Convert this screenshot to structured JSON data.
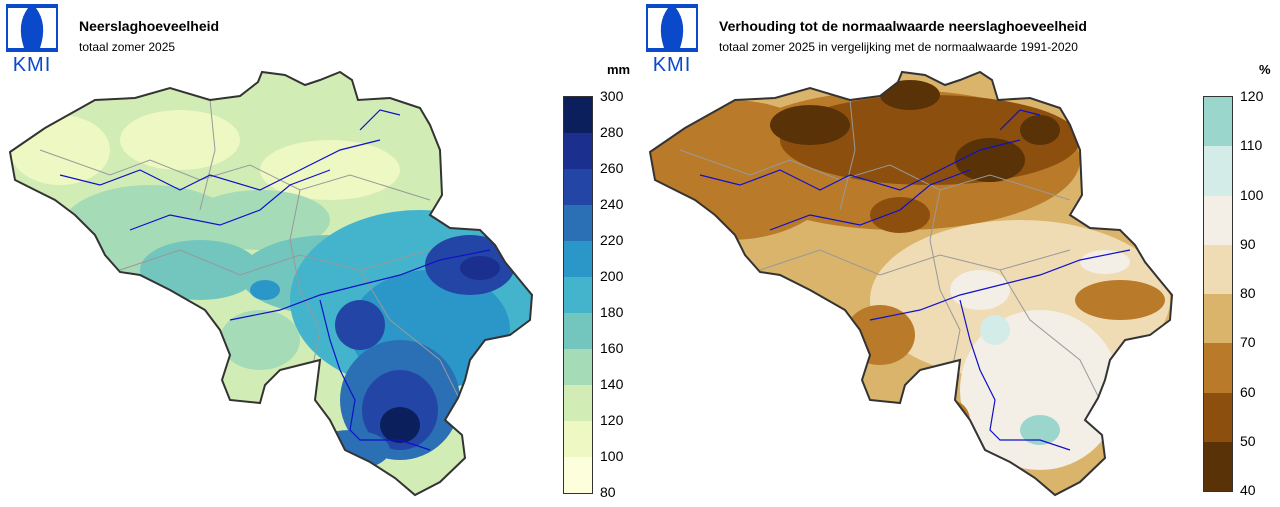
{
  "logo": {
    "text": "KMI",
    "color": "#0a49c9"
  },
  "left_map": {
    "title": "Neerslaghoeveelheid",
    "subtitle": "totaal zomer 2025",
    "unit": "mm",
    "legend": {
      "ticks": [
        "300",
        "280",
        "260",
        "240",
        "220",
        "200",
        "180",
        "160",
        "140",
        "120",
        "100",
        "80"
      ],
      "colors": [
        "#0a1f5c",
        "#1a2f8e",
        "#2346a6",
        "#2b6fb5",
        "#2a97c8",
        "#43b4cb",
        "#72c6bd",
        "#a6dbb8",
        "#d2ecb5",
        "#eef8c2",
        "#fdfedc"
      ]
    }
  },
  "right_map": {
    "title": "Verhouding tot de normaalwaarde neerslaghoeveelheid",
    "subtitle": "totaal zomer 2025 in vergelijking met de normaalwaarde 1991-2020",
    "unit": "%",
    "legend": {
      "ticks": [
        "120",
        "110",
        "100",
        "90",
        "80",
        "70",
        "60",
        "50",
        "40"
      ],
      "colors": [
        "#9ad6cc",
        "#d3ece8",
        "#f3efe6",
        "#efdcb4",
        "#d9b46a",
        "#b97a2a",
        "#8c4f0e",
        "#5a3207"
      ]
    }
  }
}
